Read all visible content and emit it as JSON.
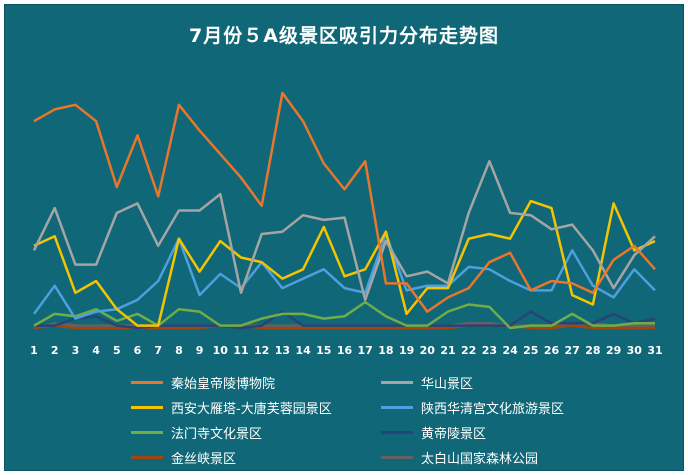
{
  "chart_data": {
    "type": "line",
    "title": "7月份５A级景区吸引力分布走势图",
    "categories": [
      "1",
      "2",
      "3",
      "4",
      "5",
      "6",
      "7",
      "8",
      "9",
      "10",
      "11",
      "12",
      "13",
      "14",
      "15",
      "16",
      "17",
      "18",
      "19",
      "20",
      "21",
      "22",
      "23",
      "24",
      "25",
      "26",
      "27",
      "28",
      "29",
      "30",
      "31"
    ],
    "ylim": [
      0,
      100
    ],
    "grid": false,
    "legend_position": "bottom",
    "series": [
      {
        "name": "秦始皇帝陵博物院",
        "color": "#e8762d",
        "values": [
          88,
          93,
          95,
          88,
          60,
          82,
          56,
          95,
          84,
          74,
          64,
          52,
          100,
          88,
          70,
          59,
          71,
          19,
          19,
          7,
          13,
          17,
          28,
          32,
          16,
          20,
          19,
          15,
          29,
          35,
          25
        ]
      },
      {
        "name": "华山景区",
        "color": "#a5a5a5",
        "values": [
          33,
          51,
          27,
          27,
          49,
          53,
          35,
          50,
          50,
          57,
          15,
          40,
          41,
          48,
          46,
          47,
          12,
          37,
          22,
          24,
          19,
          49,
          71,
          49,
          48,
          42,
          44,
          33,
          17,
          31,
          39
        ]
      },
      {
        "name": "西安大雁塔-大唐芙蓉园景区",
        "color": "#f5c400",
        "values": [
          35,
          39,
          15,
          20,
          8,
          1,
          1,
          38,
          24,
          37,
          30,
          28,
          21,
          25,
          43,
          22,
          25,
          41,
          6,
          17,
          17,
          38,
          40,
          38,
          54,
          51,
          14,
          10,
          53,
          33,
          37
        ]
      },
      {
        "name": "陕西华清宫文化旅游景区",
        "color": "#4d9fdd",
        "values": [
          6,
          18,
          4,
          7,
          8,
          12,
          20,
          38,
          14,
          23,
          17,
          28,
          17,
          21,
          25,
          17,
          15,
          40,
          16,
          18,
          18,
          26,
          25,
          20,
          16,
          16,
          33,
          18,
          13,
          25,
          16
        ]
      },
      {
        "name": "法门寺文化景区",
        "color": "#70ad47",
        "values": [
          1,
          6,
          5,
          8,
          3,
          6,
          1,
          8,
          7,
          1,
          1,
          4,
          6,
          6,
          4,
          5,
          11,
          5,
          1,
          1,
          7,
          10,
          9,
          0,
          1,
          1,
          6,
          1,
          1,
          2,
          2
        ]
      },
      {
        "name": "黄帝陵景区",
        "color": "#264478",
        "values": [
          1,
          1,
          4,
          5,
          1,
          0,
          1,
          1,
          1,
          1,
          0,
          1,
          7,
          1,
          1,
          1,
          1,
          1,
          1,
          1,
          1,
          1,
          1,
          1,
          7,
          2,
          2,
          2,
          6,
          2,
          4
        ]
      },
      {
        "name": "金丝峡景区",
        "color": "#9e480e",
        "values": [
          0,
          1,
          0,
          0,
          0,
          0,
          0,
          0,
          0,
          1,
          1,
          0,
          0,
          0,
          0,
          0,
          0,
          0,
          0,
          0,
          0,
          1,
          1,
          1,
          0,
          0,
          1,
          0,
          0,
          0,
          0
        ]
      },
      {
        "name": "太白山国家森林公园",
        "color": "#636363",
        "values": [
          0,
          2,
          1,
          1,
          1,
          1,
          1,
          1,
          1,
          1,
          1,
          1,
          1,
          1,
          1,
          1,
          1,
          1,
          1,
          1,
          1,
          2,
          2,
          1,
          1,
          1,
          1,
          2,
          1,
          1,
          1
        ]
      }
    ]
  }
}
